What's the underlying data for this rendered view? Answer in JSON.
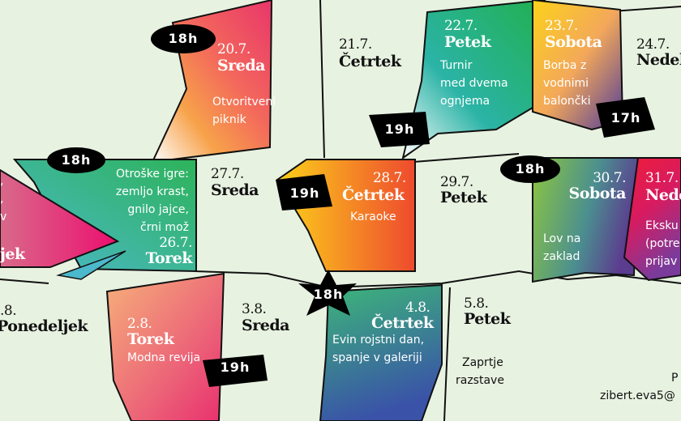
{
  "colors": {
    "background": "#e8f2e1",
    "badge": "#000000"
  },
  "events": {
    "d20": {
      "date": "20.7.",
      "day": "Sreda",
      "text": [
        "Otvoritveni",
        "piknik"
      ],
      "time": "18h"
    },
    "d21": {
      "date": "21.7.",
      "day": "Četrtek"
    },
    "d22": {
      "date": "22.7.",
      "day": "Petek",
      "text": [
        "Turnir",
        "med dvema",
        "ognjema"
      ],
      "time": "19h"
    },
    "d23": {
      "date": "23.7.",
      "day": "Sobota",
      "text": [
        "Borba z",
        "vodnimi",
        "balončki"
      ],
      "time": "17h"
    },
    "d24": {
      "date": "24.7.",
      "day": "Nedel"
    },
    "d25": {
      "day": "jek",
      "text": [
        ",",
        ",",
        "v"
      ]
    },
    "d26": {
      "date": "26.7.",
      "day": "Torek",
      "text": [
        "Otroške igre:",
        "zemljo krast,",
        "gnilo jajce,",
        "črni mož"
      ],
      "time": "18h"
    },
    "d27": {
      "date": "27.7.",
      "day": "Sreda"
    },
    "d28": {
      "date": "28.7.",
      "day": "Četrtek",
      "text": [
        "Karaoke"
      ],
      "time": "19h"
    },
    "d29": {
      "date": "29.7.",
      "day": "Petek"
    },
    "d30": {
      "date": "30.7.",
      "day": "Sobota",
      "text": [
        "Lov na",
        "zaklad"
      ],
      "time": "18h"
    },
    "d31": {
      "date": "31.7.",
      "day": "Nede",
      "text": [
        "Eksku",
        "(potre",
        "prijav"
      ]
    },
    "d01": {
      "date": ".8.",
      "day": "Ponedeljek"
    },
    "d02": {
      "date": "2.8.",
      "day": "Torek",
      "text": [
        "Modna revija"
      ],
      "time": "19h"
    },
    "d03": {
      "date": "3.8.",
      "day": "Sreda"
    },
    "d04": {
      "date": "4.8.",
      "day": "Četrtek",
      "text": [
        "Evin rojstni dan,",
        "spanje v galeriji"
      ],
      "time": "18h"
    },
    "d05": {
      "date": "5.8.",
      "day": "Petek",
      "text": [
        "Zaprtje",
        "razstave"
      ]
    }
  },
  "contact": {
    "line1": "P",
    "line2": "zibert.eva5@"
  }
}
